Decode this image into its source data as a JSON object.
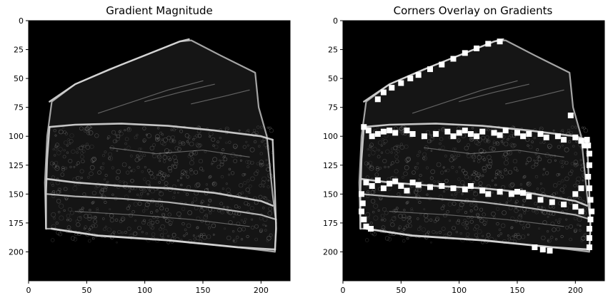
{
  "panels": [
    {
      "title": "Gradient Magnitude",
      "x_ticks": [
        "0",
        "50",
        "100",
        "150",
        "200"
      ],
      "y_ticks": [
        "0",
        "25",
        "50",
        "75",
        "100",
        "125",
        "150",
        "175",
        "200"
      ],
      "overlay": false
    },
    {
      "title": "Corners Overlay on Gradients",
      "x_ticks": [
        "0",
        "50",
        "100",
        "150",
        "200"
      ],
      "y_ticks": [
        "0",
        "25",
        "50",
        "75",
        "100",
        "125",
        "150",
        "175",
        "200"
      ],
      "overlay": true
    }
  ],
  "colors": {
    "background": "#000000",
    "edge": "#d8d8d8",
    "texture": "#6a6a6a",
    "corner_marker": "#ffffff"
  }
}
